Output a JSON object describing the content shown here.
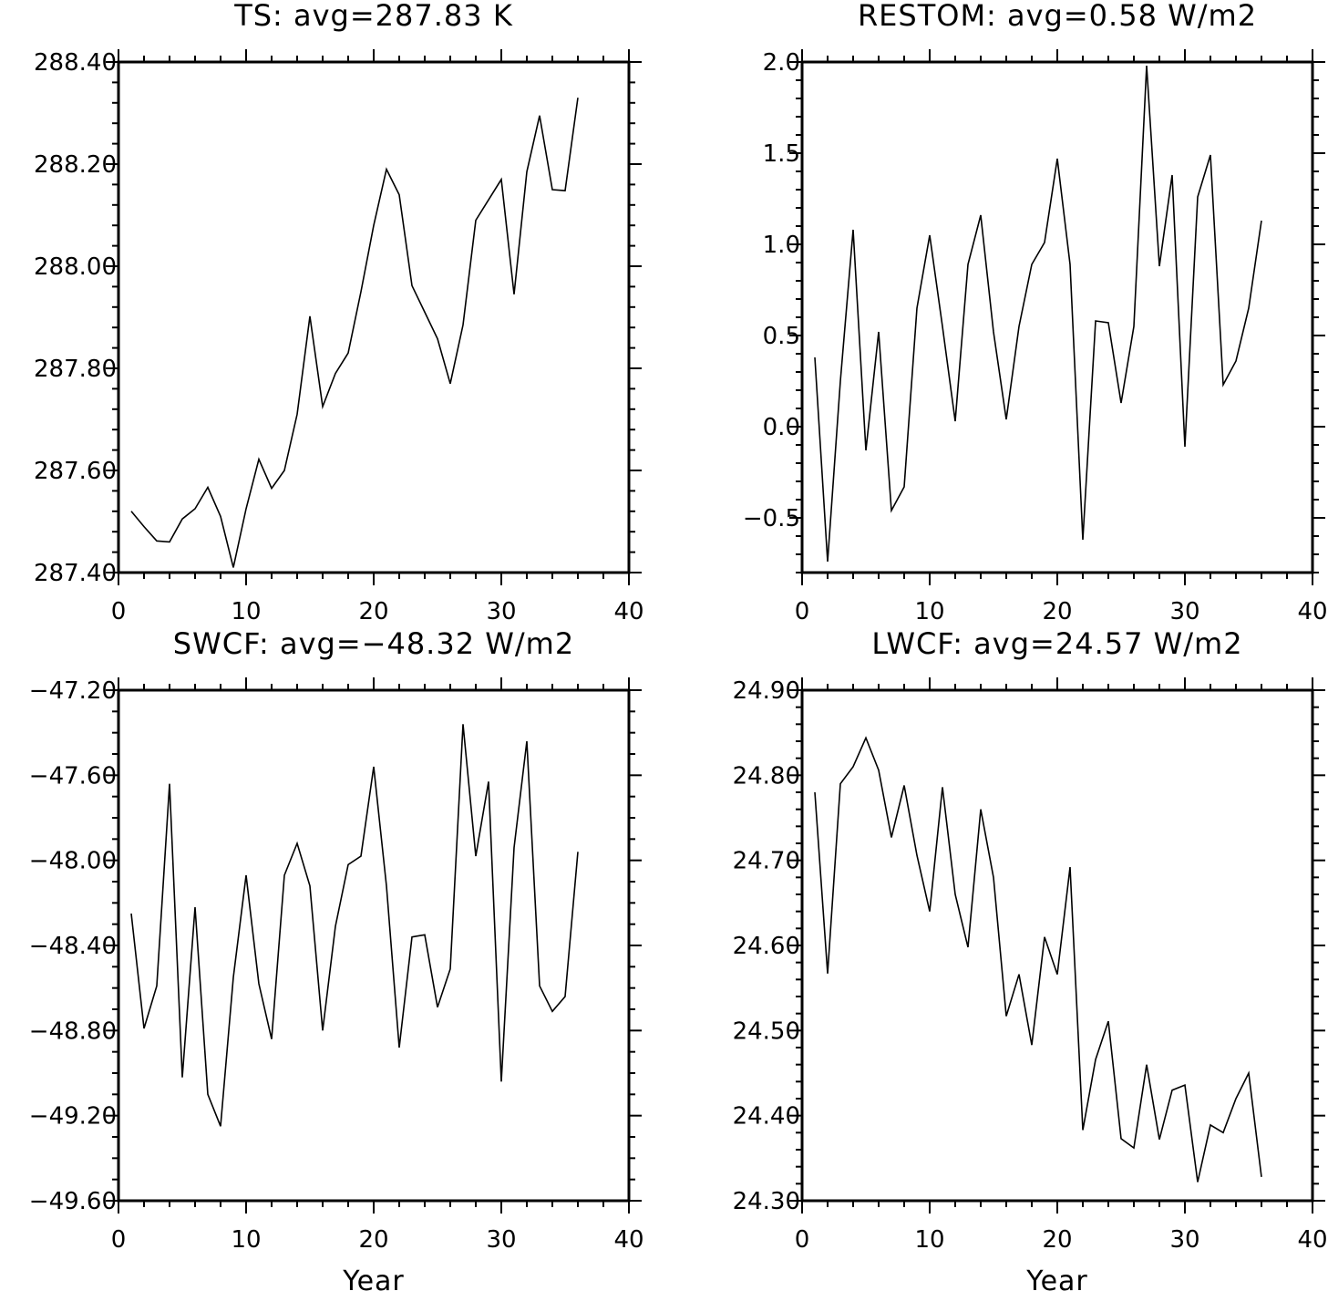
{
  "chart_data": [
    {
      "type": "line",
      "title": "TS: avg=287.83 K",
      "xlabel": "",
      "ylabel": "",
      "xlim": [
        0,
        40
      ],
      "ylim": [
        287.4,
        288.4
      ],
      "xticks": [
        0,
        10,
        20,
        30,
        40
      ],
      "xtick_labels": [
        "0",
        "10",
        "20",
        "30",
        "40"
      ],
      "yticks": [
        287.4,
        287.6,
        287.8,
        288.0,
        288.2,
        288.4
      ],
      "ytick_labels": [
        "287.40",
        "287.60",
        "287.80",
        "288.00",
        "288.20",
        "288.40"
      ],
      "minor_y_per_major": 5,
      "minor_x_per_major": 5,
      "grid": false,
      "x": [
        1,
        2,
        3,
        4,
        5,
        6,
        7,
        8,
        9,
        10,
        11,
        12,
        13,
        14,
        15,
        16,
        17,
        18,
        19,
        20,
        21,
        22,
        23,
        24,
        25,
        26,
        27,
        28,
        29,
        30,
        31,
        32,
        33,
        34,
        35,
        36
      ],
      "values": [
        287.52,
        287.49,
        287.462,
        287.46,
        287.505,
        287.525,
        287.567,
        287.51,
        287.41,
        287.525,
        287.622,
        287.565,
        287.6,
        287.71,
        287.902,
        287.725,
        287.79,
        287.83,
        287.95,
        288.08,
        288.19,
        288.14,
        287.962,
        287.91,
        287.858,
        287.77,
        287.885,
        288.09,
        288.13,
        288.17,
        287.945,
        288.185,
        288.295,
        288.15,
        288.148,
        288.33
      ]
    },
    {
      "type": "line",
      "title": "RESTOM: avg=0.58 W/m2",
      "xlabel": "",
      "ylabel": "",
      "xlim": [
        0,
        40
      ],
      "ylim": [
        -0.8,
        2.0
      ],
      "xticks": [
        0,
        10,
        20,
        30,
        40
      ],
      "xtick_labels": [
        "0",
        "10",
        "20",
        "30",
        "40"
      ],
      "yticks": [
        -0.5,
        0.0,
        0.5,
        1.0,
        1.5,
        2.0
      ],
      "ytick_labels": [
        "−0.5",
        "0.0",
        "0.5",
        "1.0",
        "1.5",
        "2.0"
      ],
      "minor_y_per_major": 5,
      "minor_x_per_major": 5,
      "grid": false,
      "x": [
        1,
        2,
        3,
        4,
        5,
        6,
        7,
        8,
        9,
        10,
        11,
        12,
        13,
        14,
        15,
        16,
        17,
        18,
        19,
        20,
        21,
        22,
        23,
        24,
        25,
        26,
        27,
        28,
        29,
        30,
        31,
        32,
        33,
        34,
        35,
        36
      ],
      "values": [
        0.38,
        -0.74,
        0.25,
        1.08,
        -0.13,
        0.52,
        -0.46,
        -0.33,
        0.65,
        1.05,
        0.55,
        0.03,
        0.89,
        1.16,
        0.52,
        0.04,
        0.55,
        0.89,
        1.01,
        1.47,
        0.89,
        -0.62,
        0.58,
        0.57,
        0.13,
        0.55,
        1.98,
        0.88,
        1.38,
        -0.11,
        1.26,
        1.49,
        0.23,
        0.36,
        0.65,
        1.13
      ]
    },
    {
      "type": "line",
      "title": "SWCF: avg=−48.32 W/m2",
      "xlabel": "Year",
      "ylabel": "",
      "xlim": [
        0,
        40
      ],
      "ylim": [
        -49.6,
        -47.2
      ],
      "xticks": [
        0,
        10,
        20,
        30,
        40
      ],
      "xtick_labels": [
        "0",
        "10",
        "20",
        "30",
        "40"
      ],
      "yticks": [
        -49.6,
        -49.2,
        -48.8,
        -48.4,
        -48.0,
        -47.6,
        -47.2
      ],
      "ytick_labels": [
        "−49.60",
        "−49.20",
        "−48.80",
        "−48.40",
        "−48.00",
        "−47.60",
        "−47.20"
      ],
      "minor_y_per_major": 4,
      "minor_x_per_major": 5,
      "grid": false,
      "x": [
        1,
        2,
        3,
        4,
        5,
        6,
        7,
        8,
        9,
        10,
        11,
        12,
        13,
        14,
        15,
        16,
        17,
        18,
        19,
        20,
        21,
        22,
        23,
        24,
        25,
        26,
        27,
        28,
        29,
        30,
        31,
        32,
        33,
        34,
        35,
        36
      ],
      "values": [
        -48.25,
        -48.79,
        -48.59,
        -47.64,
        -49.02,
        -48.22,
        -49.1,
        -49.25,
        -48.55,
        -48.07,
        -48.58,
        -48.84,
        -48.07,
        -47.92,
        -48.12,
        -48.8,
        -48.31,
        -48.02,
        -47.98,
        -47.56,
        -48.12,
        -48.88,
        -48.36,
        -48.35,
        -48.69,
        -48.51,
        -47.36,
        -47.98,
        -47.63,
        -49.04,
        -47.94,
        -47.44,
        -48.59,
        -48.71,
        -48.64,
        -47.96
      ]
    },
    {
      "type": "line",
      "title": "LWCF: avg=24.57 W/m2",
      "xlabel": "Year",
      "ylabel": "",
      "xlim": [
        0,
        40
      ],
      "ylim": [
        24.3,
        24.9
      ],
      "xticks": [
        0,
        10,
        20,
        30,
        40
      ],
      "xtick_labels": [
        "0",
        "10",
        "20",
        "30",
        "40"
      ],
      "yticks": [
        24.3,
        24.4,
        24.5,
        24.6,
        24.7,
        24.8,
        24.9
      ],
      "ytick_labels": [
        "24.30",
        "24.40",
        "24.50",
        "24.60",
        "24.70",
        "24.80",
        "24.90"
      ],
      "minor_y_per_major": 5,
      "minor_x_per_major": 5,
      "grid": false,
      "x": [
        1,
        2,
        3,
        4,
        5,
        6,
        7,
        8,
        9,
        10,
        11,
        12,
        13,
        14,
        15,
        16,
        17,
        18,
        19,
        20,
        21,
        22,
        23,
        24,
        25,
        26,
        27,
        28,
        29,
        30,
        31,
        32,
        33,
        34,
        35,
        36
      ],
      "values": [
        24.78,
        24.567,
        24.79,
        24.81,
        24.844,
        24.806,
        24.727,
        24.788,
        24.706,
        24.64,
        24.786,
        24.66,
        24.598,
        24.76,
        24.68,
        24.517,
        24.566,
        24.483,
        24.61,
        24.566,
        24.692,
        24.383,
        24.466,
        24.511,
        24.373,
        24.362,
        24.46,
        24.372,
        24.43,
        24.436,
        24.322,
        24.389,
        24.38,
        24.42,
        24.45,
        24.328
      ]
    }
  ]
}
